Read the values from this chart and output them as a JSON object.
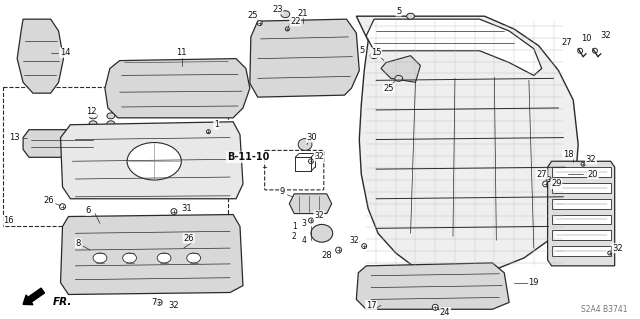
{
  "bg_color": "#ffffff",
  "diagram_code": "S2A4 B3741",
  "ref_label": "B-11-10",
  "fr_label": "FR.",
  "figsize": [
    6.4,
    3.19
  ],
  "dpi": 100,
  "line_color": "#2a2a2a",
  "text_color": "#111111",
  "light_gray": "#bbbbbb",
  "mid_gray": "#777777",
  "fill_gray": "#d8d8d8",
  "hatch_gray": "#c0c0c0"
}
